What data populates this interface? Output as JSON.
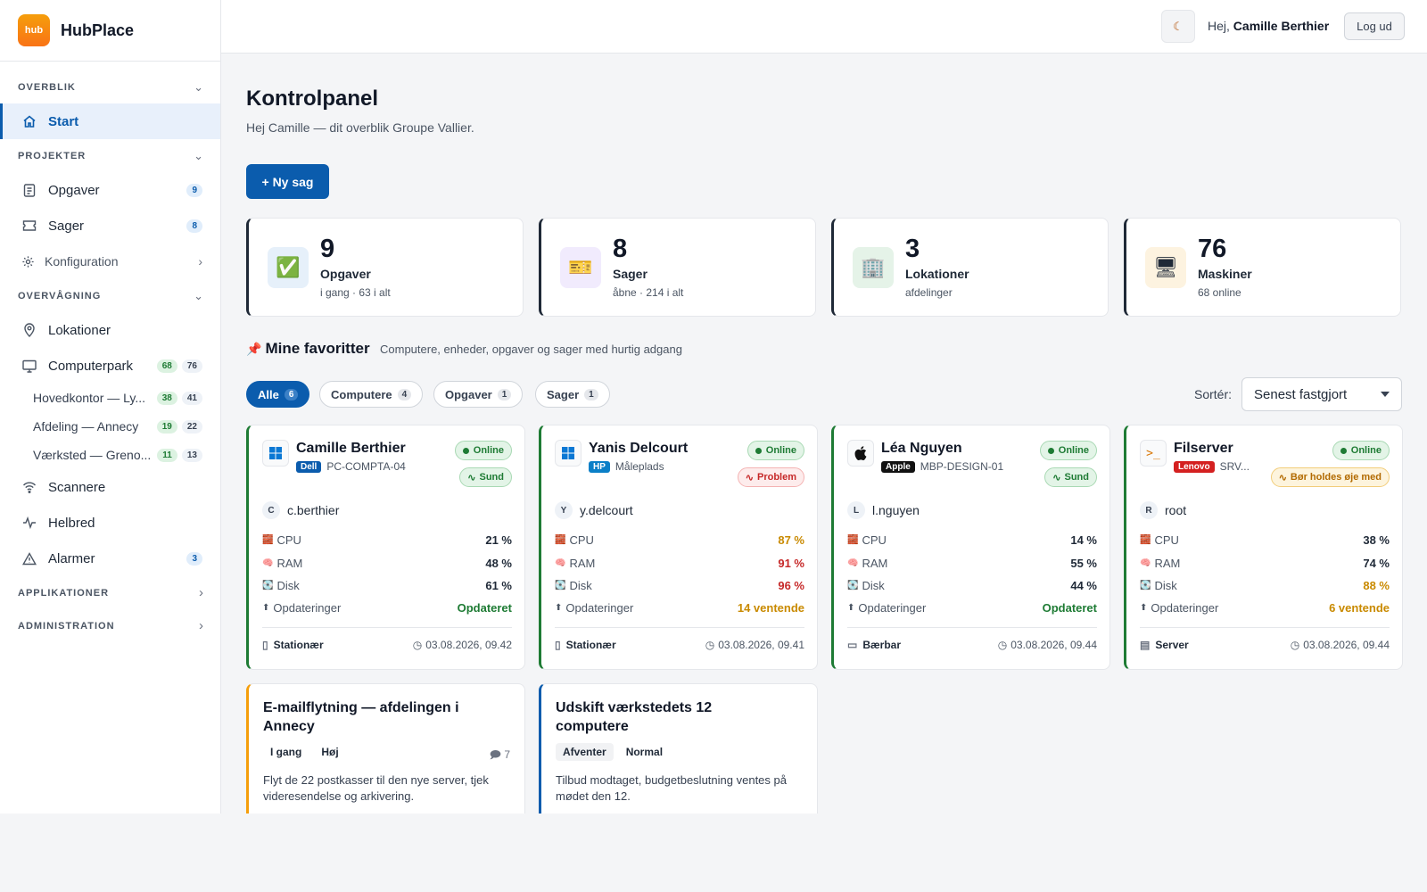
{
  "app": {
    "logo_text": "hub",
    "name": "HubPlace"
  },
  "topbar": {
    "theme_icon": "moon-icon",
    "greeting": "Hej,",
    "user_name": "Camille Berthier",
    "logout_label": "Log ud"
  },
  "sidebar": {
    "sections": {
      "overview": "OVERBLIK",
      "projects": "PROJEKTER",
      "monitoring": "OVERVÅGNING",
      "applications": "APPLIKATIONER",
      "administration": "ADMINISTRATION"
    },
    "items": {
      "start": {
        "label": "Start",
        "icon": "home-icon"
      },
      "tasks": {
        "label": "Opgaver",
        "count": "9",
        "icon": "clipboard-icon"
      },
      "cases": {
        "label": "Sager",
        "count": "8",
        "icon": "ticket-icon"
      },
      "config": {
        "label": "Konfiguration",
        "icon": "gear-icon"
      },
      "locations": {
        "label": "Lokationer",
        "icon": "map-pin-icon"
      },
      "computers": {
        "label": "Computerpark",
        "online": "68",
        "total": "76",
        "icon": "monitor-icon"
      },
      "scanners": {
        "label": "Scannere",
        "icon": "wifi-icon"
      },
      "health": {
        "label": "Helbred",
        "icon": "pulse-icon"
      },
      "alarms": {
        "label": "Alarmer",
        "count": "3",
        "icon": "warning-icon"
      }
    },
    "sub_locations": [
      {
        "label": "Hovedkontor — Ly...",
        "online": "38",
        "total": "41"
      },
      {
        "label": "Afdeling — Annecy",
        "online": "19",
        "total": "22"
      },
      {
        "label": "Værksted — Greno...",
        "online": "11",
        "total": "13"
      }
    ]
  },
  "page": {
    "title": "Kontrolpanel",
    "subtitle": "Hej Camille — dit overblik Groupe Vallier.",
    "new_case_label": "+ Ny sag"
  },
  "stats": [
    {
      "value": "9",
      "label": "Opgaver",
      "sub": "i gang · 63 i alt",
      "icon": "✅",
      "accent": "#0b5cad"
    },
    {
      "value": "8",
      "label": "Sager",
      "sub": "åbne · 214 i alt",
      "icon": "🎫",
      "accent": "#8b5cf6"
    },
    {
      "value": "3",
      "label": "Lokationer",
      "sub": "afdelinger",
      "icon": "🏢",
      "accent": "#1e7b34"
    },
    {
      "value": "76",
      "label": "Maskiner",
      "sub": "68 online",
      "icon": "🖥",
      "accent": "#f59e0b"
    }
  ],
  "favorites": {
    "title": "Mine favoritter",
    "description": "Computere, enheder, opgaver og sager med hurtig adgang",
    "filters": [
      {
        "label": "Alle",
        "count": "6"
      },
      {
        "label": "Computere",
        "count": "4"
      },
      {
        "label": "Opgaver",
        "count": "1"
      },
      {
        "label": "Sager",
        "count": "1"
      }
    ],
    "sort_label": "Sortér:",
    "sort_value": "Senest fastgjort"
  },
  "machines": [
    {
      "name": "Camille Berthier",
      "brand": "Dell",
      "brand_color": "#0b5cad",
      "host": "PC-COMPTA-04",
      "os_icon": "windows-icon",
      "status": "Online",
      "health": "Sund",
      "health_kind": "sund",
      "user_initial": "C",
      "user": "c.berthier",
      "cpu": "21 %",
      "ram": "48 %",
      "disk": "61 %",
      "updates": "Opdateret",
      "type": "Stationær",
      "type_icon": "desktop-icon",
      "date": "03.08.2026, 09.42"
    },
    {
      "name": "Yanis Delcourt",
      "brand": "HP",
      "brand_color": "#0b7fc7",
      "host": "Måleplads",
      "os_icon": "windows-icon",
      "status": "Online",
      "health": "Problem",
      "health_kind": "problem",
      "user_initial": "Y",
      "user": "y.delcourt",
      "cpu": "87 %",
      "ram": "91 %",
      "disk": "96 %",
      "updates": "14 ventende",
      "type": "Stationær",
      "type_icon": "desktop-icon",
      "date": "03.08.2026, 09.41"
    },
    {
      "name": "Léa Nguyen",
      "brand": "Apple",
      "brand_color": "#111111",
      "host": "MBP-DESIGN-01",
      "os_icon": "apple-icon",
      "status": "Online",
      "health": "Sund",
      "health_kind": "sund",
      "user_initial": "L",
      "user": "l.nguyen",
      "cpu": "14 %",
      "ram": "55 %",
      "disk": "44 %",
      "updates": "Opdateret",
      "type": "Bærbar",
      "type_icon": "laptop-icon",
      "date": "03.08.2026, 09.44"
    },
    {
      "name": "Filserver",
      "brand": "Lenovo",
      "brand_color": "#d42020",
      "host": "SRV...",
      "os_icon": "terminal-icon",
      "status": "Online",
      "health": "Bør holdes øje med",
      "health_kind": "warn",
      "user_initial": "R",
      "user": "root",
      "cpu": "38 %",
      "ram": "74 %",
      "disk": "88 %",
      "updates": "6 ventende",
      "type": "Server",
      "type_icon": "server-icon",
      "date": "03.08.2026, 09.44"
    }
  ],
  "metric_labels": {
    "cpu": "CPU",
    "ram": "RAM",
    "disk": "Disk",
    "updates": "Opdateringer"
  },
  "tasks": [
    {
      "title": "E-mailflytning — afdelingen i Annecy",
      "status": "I gang",
      "priority": "Høj",
      "comments": "7",
      "description": "Flyt de 22 postkasser til den nye server, tjek videresendelse og arkivering.",
      "accent": "#f59e0b"
    },
    {
      "title": "Udskift værkstedets 12 computere",
      "status": "Afventer",
      "priority": "Normal",
      "description": "Tilbud modtaget, budgetbeslutning ventes på mødet den 12.",
      "accent": "#0b5cad"
    }
  ]
}
